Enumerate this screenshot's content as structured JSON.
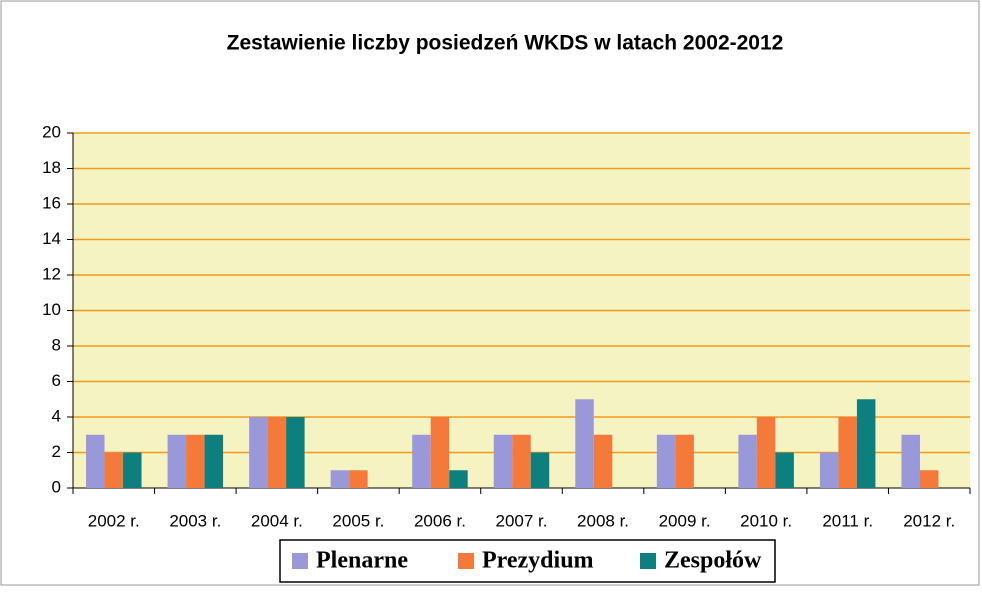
{
  "chart_data": {
    "type": "bar",
    "title": "Zestawienie liczby posiedzeń WKDS w latach 2002-2012",
    "categories": [
      "2002 r.",
      "2003 r.",
      "2004 r.",
      "2005 r.",
      "2006 r.",
      "2007 r.",
      "2008 r.",
      "2009 r.",
      "2010 r.",
      "2011 r.",
      "2012 r."
    ],
    "series": [
      {
        "name": "Plenarne",
        "color": "#9999d9",
        "values": [
          3,
          3,
          4,
          1,
          3,
          3,
          5,
          3,
          3,
          2,
          3
        ]
      },
      {
        "name": "Prezydium",
        "color": "#f47a3c",
        "values": [
          2,
          3,
          4,
          1,
          4,
          3,
          3,
          3,
          4,
          4,
          1
        ]
      },
      {
        "name": "Zespołów",
        "color": "#0e7f7f",
        "values": [
          2,
          3,
          4,
          0,
          1,
          2,
          0,
          0,
          2,
          5,
          0
        ]
      }
    ],
    "ylim": [
      0,
      20
    ],
    "yticks": [
      0,
      2,
      4,
      6,
      8,
      10,
      12,
      14,
      16,
      18,
      20
    ],
    "grid": true,
    "legend": "bottom"
  }
}
